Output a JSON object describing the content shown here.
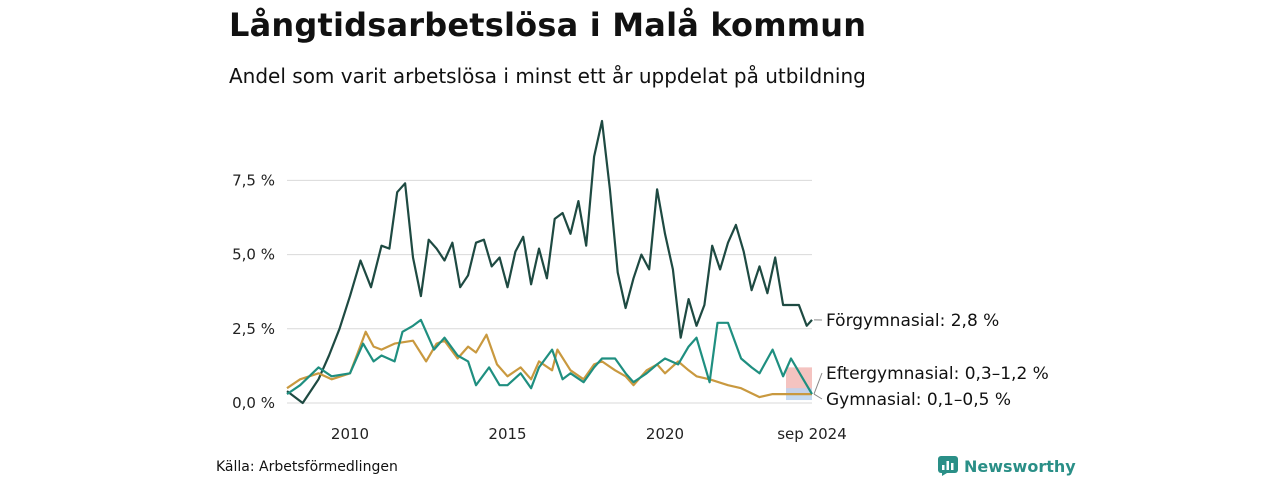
{
  "title": "Långtidsarbetslösa i Malå kommun",
  "subtitle": "Andel som varit arbetslösa i minst ett år uppdelat på utbildning",
  "source": "Källa: Arbetsförmedlingen",
  "brand": "Newsworthy",
  "chart_data": {
    "type": "line",
    "title": "Långtidsarbetslösa i Malå kommun",
    "subtitle": "Andel som varit arbetslösa i minst ett år uppdelat på utbildning",
    "y_unit": "%",
    "ylim": [
      0,
      9.6
    ],
    "xlim": [
      "2008-01",
      "2024-09"
    ],
    "y_ticks": [
      0,
      2.5,
      5.0,
      7.5
    ],
    "y_tick_labels": [
      "0,0 %",
      "2,5 %",
      "5,0 %",
      "7,5 %"
    ],
    "x_ticks": [
      2010,
      2015,
      2020,
      "sep 2024"
    ],
    "x_tick_labels": [
      "2010",
      "2015",
      "2020",
      "sep 2024"
    ],
    "grid": "horizontal",
    "legend": "direct labels at line ends",
    "series": [
      {
        "name": "Förgymnasial",
        "end_label": "Förgymnasial: 2,8 %",
        "color": "#1e4a42",
        "points": [
          [
            "2008-01",
            0.4
          ],
          [
            "2008-07",
            0.0
          ],
          [
            "2009-01",
            0.8
          ],
          [
            "2009-05",
            1.6
          ],
          [
            "2009-09",
            2.5
          ],
          [
            "2010-01",
            3.6
          ],
          [
            "2010-05",
            4.8
          ],
          [
            "2010-09",
            3.9
          ],
          [
            "2011-01",
            5.3
          ],
          [
            "2011-04",
            5.2
          ],
          [
            "2011-07",
            7.1
          ],
          [
            "2011-10",
            7.4
          ],
          [
            "2012-01",
            4.9
          ],
          [
            "2012-04",
            3.6
          ],
          [
            "2012-07",
            5.5
          ],
          [
            "2012-10",
            5.2
          ],
          [
            "2013-01",
            4.8
          ],
          [
            "2013-04",
            5.4
          ],
          [
            "2013-07",
            3.9
          ],
          [
            "2013-10",
            4.3
          ],
          [
            "2014-01",
            5.4
          ],
          [
            "2014-04",
            5.5
          ],
          [
            "2014-07",
            4.6
          ],
          [
            "2014-10",
            4.9
          ],
          [
            "2015-01",
            3.9
          ],
          [
            "2015-04",
            5.1
          ],
          [
            "2015-07",
            5.6
          ],
          [
            "2015-10",
            4.0
          ],
          [
            "2016-01",
            5.2
          ],
          [
            "2016-04",
            4.2
          ],
          [
            "2016-07",
            6.2
          ],
          [
            "2016-10",
            6.4
          ],
          [
            "2017-01",
            5.7
          ],
          [
            "2017-04",
            6.8
          ],
          [
            "2017-07",
            5.3
          ],
          [
            "2017-10",
            8.3
          ],
          [
            "2018-01",
            9.5
          ],
          [
            "2018-04",
            7.2
          ],
          [
            "2018-07",
            4.4
          ],
          [
            "2018-10",
            3.2
          ],
          [
            "2019-01",
            4.2
          ],
          [
            "2019-04",
            5.0
          ],
          [
            "2019-07",
            4.5
          ],
          [
            "2019-10",
            7.2
          ],
          [
            "2020-01",
            5.7
          ],
          [
            "2020-04",
            4.5
          ],
          [
            "2020-07",
            2.2
          ],
          [
            "2020-10",
            3.5
          ],
          [
            "2021-01",
            2.6
          ],
          [
            "2021-04",
            3.3
          ],
          [
            "2021-07",
            5.3
          ],
          [
            "2021-10",
            4.5
          ],
          [
            "2022-01",
            5.4
          ],
          [
            "2022-04",
            6.0
          ],
          [
            "2022-07",
            5.1
          ],
          [
            "2022-10",
            3.8
          ],
          [
            "2023-01",
            4.6
          ],
          [
            "2023-04",
            3.7
          ],
          [
            "2023-07",
            4.9
          ],
          [
            "2023-10",
            3.3
          ],
          [
            "2024-01",
            3.3
          ],
          [
            "2024-04",
            3.3
          ],
          [
            "2024-07",
            2.6
          ],
          [
            "2024-09",
            2.8
          ]
        ]
      },
      {
        "name": "Eftergymnasial",
        "end_label": "Eftergymnasial: 0,3–1,2 %",
        "color": "#c9993f",
        "points": [
          [
            "2008-01",
            0.5
          ],
          [
            "2008-06",
            0.8
          ],
          [
            "2009-01",
            1.0
          ],
          [
            "2009-06",
            0.8
          ],
          [
            "2010-01",
            1.0
          ],
          [
            "2010-04",
            1.7
          ],
          [
            "2010-07",
            2.4
          ],
          [
            "2010-10",
            1.9
          ],
          [
            "2011-01",
            1.8
          ],
          [
            "2011-06",
            2.0
          ],
          [
            "2012-01",
            2.1
          ],
          [
            "2012-06",
            1.4
          ],
          [
            "2012-10",
            2.0
          ],
          [
            "2013-01",
            2.1
          ],
          [
            "2013-06",
            1.5
          ],
          [
            "2013-10",
            1.9
          ],
          [
            "2014-01",
            1.7
          ],
          [
            "2014-05",
            2.3
          ],
          [
            "2014-09",
            1.3
          ],
          [
            "2015-01",
            0.9
          ],
          [
            "2015-06",
            1.2
          ],
          [
            "2015-10",
            0.8
          ],
          [
            "2016-01",
            1.4
          ],
          [
            "2016-06",
            1.1
          ],
          [
            "2016-08",
            1.8
          ],
          [
            "2017-01",
            1.1
          ],
          [
            "2017-06",
            0.8
          ],
          [
            "2017-10",
            1.3
          ],
          [
            "2018-01",
            1.4
          ],
          [
            "2018-06",
            1.1
          ],
          [
            "2018-10",
            0.9
          ],
          [
            "2019-01",
            0.6
          ],
          [
            "2019-06",
            1.1
          ],
          [
            "2019-10",
            1.3
          ],
          [
            "2020-01",
            1.0
          ],
          [
            "2020-06",
            1.4
          ],
          [
            "2020-10",
            1.1
          ],
          [
            "2021-01",
            0.9
          ],
          [
            "2021-06",
            0.8
          ],
          [
            "2022-01",
            0.6
          ],
          [
            "2022-06",
            0.5
          ],
          [
            "2023-01",
            0.2
          ],
          [
            "2023-06",
            0.3
          ],
          [
            "2024-01",
            0.3
          ],
          [
            "2024-09",
            0.3
          ]
        ]
      },
      {
        "name": "Gymnasial",
        "end_label": "Gymnasial: 0,1–0,5 %",
        "color": "#1f8f80",
        "points": [
          [
            "2008-01",
            0.3
          ],
          [
            "2008-06",
            0.6
          ],
          [
            "2009-01",
            1.2
          ],
          [
            "2009-06",
            0.9
          ],
          [
            "2010-01",
            1.0
          ],
          [
            "2010-06",
            2.0
          ],
          [
            "2010-10",
            1.4
          ],
          [
            "2011-01",
            1.6
          ],
          [
            "2011-06",
            1.4
          ],
          [
            "2011-09",
            2.4
          ],
          [
            "2012-01",
            2.6
          ],
          [
            "2012-04",
            2.8
          ],
          [
            "2012-09",
            1.8
          ],
          [
            "2013-01",
            2.2
          ],
          [
            "2013-06",
            1.6
          ],
          [
            "2013-10",
            1.4
          ],
          [
            "2014-01",
            0.6
          ],
          [
            "2014-06",
            1.2
          ],
          [
            "2014-10",
            0.6
          ],
          [
            "2015-01",
            0.6
          ],
          [
            "2015-06",
            1.0
          ],
          [
            "2015-10",
            0.5
          ],
          [
            "2016-01",
            1.2
          ],
          [
            "2016-06",
            1.8
          ],
          [
            "2016-10",
            0.8
          ],
          [
            "2017-01",
            1.0
          ],
          [
            "2017-06",
            0.7
          ],
          [
            "2017-10",
            1.2
          ],
          [
            "2018-01",
            1.5
          ],
          [
            "2018-06",
            1.5
          ],
          [
            "2018-10",
            1.0
          ],
          [
            "2019-01",
            0.7
          ],
          [
            "2019-06",
            1.0
          ],
          [
            "2019-10",
            1.3
          ],
          [
            "2020-01",
            1.5
          ],
          [
            "2020-06",
            1.3
          ],
          [
            "2020-10",
            1.9
          ],
          [
            "2021-01",
            2.2
          ],
          [
            "2021-06",
            0.7
          ],
          [
            "2021-09",
            2.7
          ],
          [
            "2022-01",
            2.7
          ],
          [
            "2022-06",
            1.5
          ],
          [
            "2022-10",
            1.2
          ],
          [
            "2023-01",
            1.0
          ],
          [
            "2023-06",
            1.8
          ],
          [
            "2023-10",
            0.9
          ],
          [
            "2024-01",
            1.5
          ],
          [
            "2024-09",
            0.3
          ]
        ]
      }
    ],
    "end_ranges": [
      {
        "name": "Eftergymnasial",
        "range": [
          0.3,
          1.2
        ],
        "color": "#f2b8b5"
      },
      {
        "name": "Gymnasial",
        "range": [
          0.1,
          0.5
        ],
        "color": "#bcd3ef"
      }
    ]
  }
}
